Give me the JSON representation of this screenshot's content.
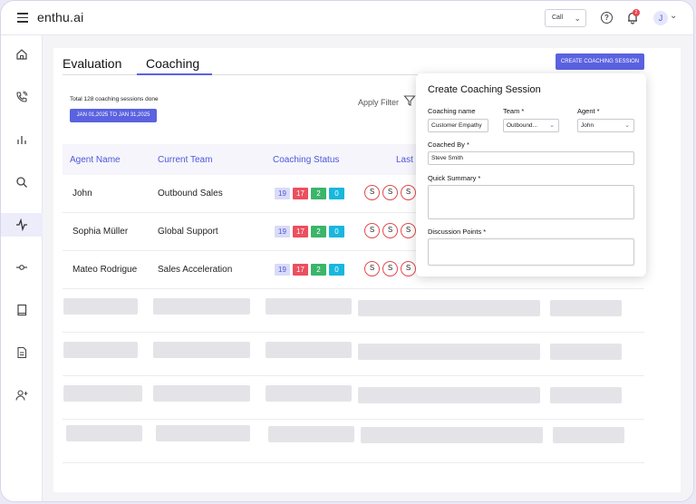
{
  "app": {
    "brand": "enthu.ai"
  },
  "topbar": {
    "call_select": "Call",
    "notif_count": "2",
    "avatar_initial": "J"
  },
  "tabs": [
    {
      "label": "Evaluation"
    },
    {
      "label": "Coaching"
    }
  ],
  "create_button": "CREATE COACHING SESSION",
  "summary": {
    "total_text": "Total 128 coaching sessions done",
    "date_range": "JAN 01,2025 TO JAN 31,2025"
  },
  "filter": {
    "label": "Apply Filter"
  },
  "table": {
    "headers": [
      "Agent Name",
      "Current Team",
      "Coaching Status",
      "Last"
    ],
    "rows": [
      {
        "agent": "John",
        "team": "Outbound Sales",
        "status": [
          "19",
          "17",
          "2",
          "0"
        ],
        "sessions": [
          "S",
          "S",
          "S"
        ]
      },
      {
        "agent": "Sophia Müller",
        "team": "Global Support",
        "status": [
          "19",
          "17",
          "2",
          "0"
        ],
        "sessions": [
          "S",
          "S",
          "S"
        ]
      },
      {
        "agent": "Mateo Rodrigue",
        "team": "Sales Acceleration",
        "status": [
          "19",
          "17",
          "2",
          "0"
        ],
        "sessions": [
          "S",
          "S",
          "S"
        ]
      }
    ]
  },
  "modal": {
    "title": "Create Coaching Session",
    "coaching_name_label": "Coaching name",
    "coaching_name_value": "Customer Empathy",
    "team_label": "Team *",
    "team_value": "Outbound...",
    "agent_label": "Agent *",
    "agent_value": "John",
    "coached_by_label": "Coached By *",
    "coached_by_value": "Steve Smith",
    "summary_label": "Quick Summary *",
    "discussion_label": "Discussion Points *"
  },
  "colors": {
    "accent": "#5a62e0",
    "danger": "#ec4f5f",
    "success": "#3bb56a",
    "info": "#19b7de"
  }
}
